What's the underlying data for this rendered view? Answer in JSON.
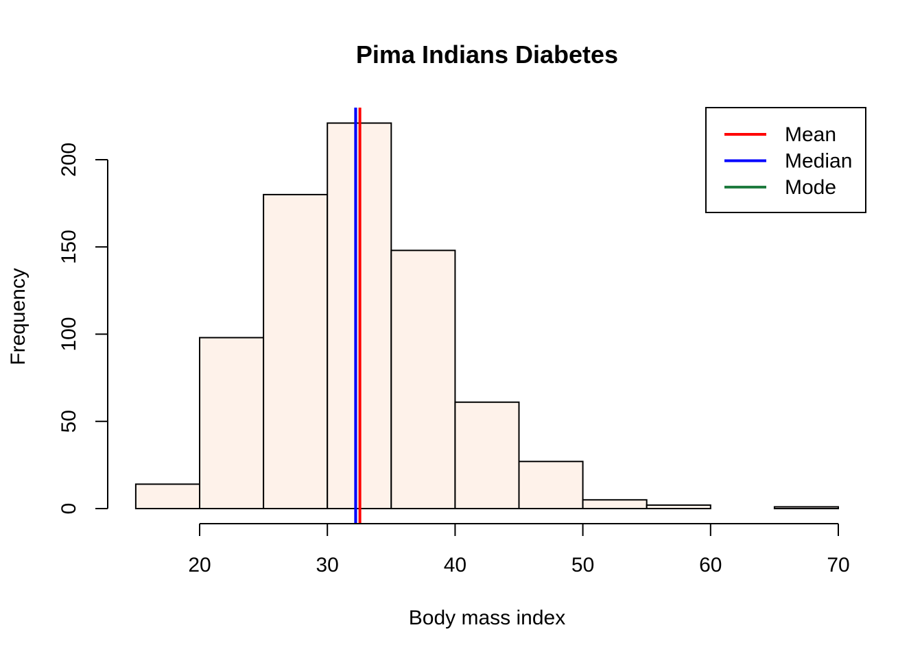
{
  "chart_data": {
    "type": "bar",
    "subtype": "histogram",
    "title": "Pima Indians Diabetes",
    "xlabel": "Body mass index",
    "ylabel": "Frequency",
    "bins": [
      {
        "start": 15,
        "end": 20,
        "count": 14
      },
      {
        "start": 20,
        "end": 25,
        "count": 98
      },
      {
        "start": 25,
        "end": 30,
        "count": 180
      },
      {
        "start": 30,
        "end": 35,
        "count": 221
      },
      {
        "start": 35,
        "end": 40,
        "count": 148
      },
      {
        "start": 40,
        "end": 45,
        "count": 61
      },
      {
        "start": 45,
        "end": 50,
        "count": 27
      },
      {
        "start": 50,
        "end": 55,
        "count": 5
      },
      {
        "start": 55,
        "end": 60,
        "count": 2
      },
      {
        "start": 60,
        "end": 65,
        "count": 0
      },
      {
        "start": 65,
        "end": 70,
        "count": 1
      }
    ],
    "xlim": [
      15,
      70
    ],
    "ylim": [
      0,
      221
    ],
    "xticks": [
      20,
      30,
      40,
      50,
      60,
      70
    ],
    "yticks": [
      0,
      50,
      100,
      150,
      200
    ],
    "bar_fill": "#fef2ea",
    "bar_stroke": "#000000",
    "reference_lines": [
      {
        "name": "Mean",
        "x": 32.45,
        "color": "#ff0000"
      },
      {
        "name": "Median",
        "x": 32.3,
        "color": "#0000ff"
      },
      {
        "name": "Mode",
        "x": 32.3,
        "color": "#1e7b3f"
      }
    ],
    "legend": {
      "position": "top-right",
      "entries": [
        {
          "label": "Mean",
          "color": "#ff0000"
        },
        {
          "label": "Median",
          "color": "#0000ff"
        },
        {
          "label": "Mode",
          "color": "#1e7b3f"
        }
      ]
    },
    "grid": false
  }
}
